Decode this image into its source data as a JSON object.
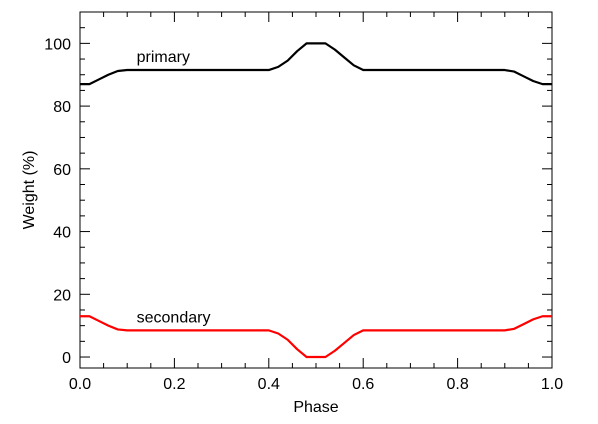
{
  "chart_data": {
    "type": "line",
    "title": "",
    "xlabel": "Phase",
    "ylabel": "Weight (%)",
    "xlim": [
      0.0,
      1.0
    ],
    "ylim": [
      -3.5,
      110
    ],
    "x_ticks": [
      0.0,
      0.2,
      0.4,
      0.6,
      0.8,
      1.0
    ],
    "x_tick_labels": [
      "0.0",
      "0.2",
      "0.4",
      "0.6",
      "0.8",
      "1.0"
    ],
    "y_ticks": [
      0,
      20,
      40,
      60,
      80,
      100
    ],
    "y_tick_labels": [
      "0",
      "20",
      "40",
      "60",
      "80",
      "100"
    ],
    "grid": false,
    "legend": "none",
    "series": [
      {
        "name": "primary",
        "color": "#000000",
        "x": [
          0.0,
          0.02,
          0.04,
          0.06,
          0.08,
          0.1,
          0.2,
          0.3,
          0.4,
          0.42,
          0.44,
          0.46,
          0.48,
          0.52,
          0.54,
          0.56,
          0.58,
          0.6,
          0.7,
          0.8,
          0.9,
          0.92,
          0.94,
          0.96,
          0.98,
          1.0
        ],
        "y": [
          87,
          87,
          88.5,
          90,
          91.2,
          91.5,
          91.5,
          91.5,
          91.5,
          92.5,
          94.5,
          97.5,
          100,
          100,
          98,
          95.5,
          93,
          91.5,
          91.5,
          91.5,
          91.5,
          91,
          89.5,
          88,
          87,
          87
        ]
      },
      {
        "name": "secondary",
        "color": "#ff0000",
        "x": [
          0.0,
          0.02,
          0.04,
          0.06,
          0.08,
          0.1,
          0.2,
          0.3,
          0.4,
          0.42,
          0.44,
          0.46,
          0.48,
          0.52,
          0.54,
          0.56,
          0.58,
          0.6,
          0.7,
          0.8,
          0.9,
          0.92,
          0.94,
          0.96,
          0.98,
          1.0
        ],
        "y": [
          13,
          13,
          11.5,
          10,
          8.8,
          8.5,
          8.5,
          8.5,
          8.5,
          7.5,
          5.5,
          2.5,
          0,
          0,
          2,
          4.5,
          7,
          8.5,
          8.5,
          8.5,
          8.5,
          9,
          10.5,
          12,
          13,
          13
        ]
      }
    ]
  }
}
